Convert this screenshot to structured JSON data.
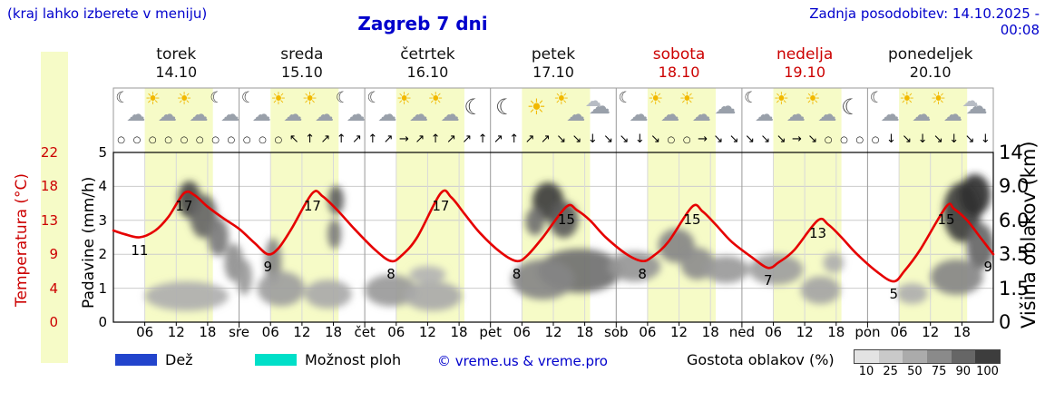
{
  "header": {
    "hint": "(kraj lahko izberete v meniju)",
    "title": "Zagreb 7 dni",
    "updated": "Zadnja posodobitev: 14.10.2025 - 00:08"
  },
  "axes": {
    "temp_label": "Temperatura (°C)",
    "temp_ticks": [
      "22",
      "18",
      "13",
      "9",
      "4",
      "0"
    ],
    "precip_label": "Padavine (mm/h)",
    "precip_ticks": [
      "5",
      "4",
      "3",
      "2",
      "1",
      "0"
    ],
    "cloud_label": "Višina oblakov (km)",
    "cloud_ticks": [
      "14",
      "9.0",
      "6.0",
      "3.5",
      "1.5",
      "0"
    ]
  },
  "days": [
    {
      "name": "torek",
      "date": "14.10",
      "weekend": false,
      "icons": [
        "moon-cloud",
        "sun-cloud",
        "sun-cloud",
        "moon-cloud"
      ]
    },
    {
      "name": "sreda",
      "date": "15.10",
      "weekend": false,
      "icons": [
        "moon-cloud",
        "sun-cloud",
        "sun-cloud",
        "moon-cloud"
      ]
    },
    {
      "name": "četrtek",
      "date": "16.10",
      "weekend": false,
      "icons": [
        "moon-cloud",
        "sun-cloud",
        "sun-cloud",
        "moon"
      ]
    },
    {
      "name": "petek",
      "date": "17.10",
      "weekend": false,
      "icons": [
        "moon",
        "sun",
        "sun-cloud",
        "clouds"
      ]
    },
    {
      "name": "sobota",
      "date": "18.10",
      "weekend": true,
      "icons": [
        "moon-cloud",
        "sun-cloud",
        "sun-cloud",
        "cloud"
      ]
    },
    {
      "name": "nedelja",
      "date": "19.10",
      "weekend": true,
      "icons": [
        "moon-cloud",
        "sun-cloud",
        "sun-cloud",
        "moon"
      ]
    },
    {
      "name": "ponedeljek",
      "date": "20.10",
      "weekend": false,
      "icons": [
        "moon-cloud",
        "sun-cloud",
        "sun-cloud",
        "clouds"
      ]
    }
  ],
  "x_ticks": [
    {
      "t": 6,
      "label": "06"
    },
    {
      "t": 12,
      "label": "12"
    },
    {
      "t": 18,
      "label": "18"
    },
    {
      "t": 24,
      "label": "sre"
    },
    {
      "t": 30,
      "label": "06"
    },
    {
      "t": 36,
      "label": "12"
    },
    {
      "t": 42,
      "label": "18"
    },
    {
      "t": 48,
      "label": "čet"
    },
    {
      "t": 54,
      "label": "06"
    },
    {
      "t": 60,
      "label": "12"
    },
    {
      "t": 66,
      "label": "18"
    },
    {
      "t": 72,
      "label": "pet"
    },
    {
      "t": 78,
      "label": "06"
    },
    {
      "t": 84,
      "label": "12"
    },
    {
      "t": 90,
      "label": "18"
    },
    {
      "t": 96,
      "label": "sob"
    },
    {
      "t": 102,
      "label": "06"
    },
    {
      "t": 108,
      "label": "12"
    },
    {
      "t": 114,
      "label": "18"
    },
    {
      "t": 120,
      "label": "ned"
    },
    {
      "t": 126,
      "label": "06"
    },
    {
      "t": 132,
      "label": "12"
    },
    {
      "t": 138,
      "label": "18"
    },
    {
      "t": 144,
      "label": "pon"
    },
    {
      "t": 150,
      "label": "06"
    },
    {
      "t": 156,
      "label": "12"
    },
    {
      "t": 162,
      "label": "18"
    }
  ],
  "wind_symbols": [
    "○",
    "○",
    "○",
    "○",
    "○",
    "○",
    "○",
    "○",
    "○",
    "○",
    "○",
    "↖",
    "↑",
    "↗",
    "↑",
    "↗",
    "↑",
    "↗",
    "→",
    "↗",
    "↑",
    "↗",
    "↗",
    "↑",
    "↗",
    "↑",
    "↗",
    "↗",
    "↘",
    "↘",
    "↓",
    "↘",
    "↘",
    "↓",
    "↘",
    "○",
    "○",
    "→",
    "↘",
    "↘",
    "↘",
    "↘",
    "↘",
    "→",
    "↘",
    "○",
    "○",
    "○",
    "○",
    "↓",
    "↘",
    "↓",
    "↘",
    "↓",
    "↘",
    "↓"
  ],
  "chart_data": {
    "type": "line",
    "title": "Zagreb 7 dni",
    "x_axis": {
      "unit": "hours",
      "range": [
        0,
        168
      ],
      "day_band_start": 6,
      "day_band_end": 19
    },
    "y_axes": {
      "temperature": {
        "label": "Temperatura (°C)",
        "tick_values": [
          0,
          4,
          9,
          13,
          18,
          22
        ]
      },
      "precipitation": {
        "label": "Padavine (mm/h)",
        "tick_values": [
          0,
          1,
          2,
          3,
          4,
          5
        ]
      },
      "cloud_height": {
        "label": "Višina oblakov (km)",
        "tick_values": [
          0,
          1.5,
          3.5,
          6.0,
          9.0,
          14
        ]
      }
    },
    "series": [
      {
        "name": "Temperatura",
        "color": "#e60000",
        "points": [
          [
            0,
            11.8
          ],
          [
            2,
            11.4
          ],
          [
            5,
            11
          ],
          [
            8,
            11.8
          ],
          [
            10.5,
            13.5
          ],
          [
            13.5,
            17
          ],
          [
            15.5,
            16.7
          ],
          [
            18,
            15
          ],
          [
            21,
            13.3
          ],
          [
            24,
            12
          ],
          [
            27,
            10.3
          ],
          [
            29.5,
            9
          ],
          [
            31.5,
            9.7
          ],
          [
            34,
            12
          ],
          [
            38,
            17
          ],
          [
            40,
            16.5
          ],
          [
            43,
            14.3
          ],
          [
            46,
            12
          ],
          [
            50,
            9.5
          ],
          [
            53,
            8
          ],
          [
            55,
            8.8
          ],
          [
            58,
            11
          ],
          [
            62.5,
            17
          ],
          [
            64.5,
            16.4
          ],
          [
            67,
            14
          ],
          [
            70,
            11.5
          ],
          [
            74,
            9.2
          ],
          [
            77,
            8
          ],
          [
            79,
            8.8
          ],
          [
            82,
            11
          ],
          [
            86.5,
            15
          ],
          [
            88.5,
            14.5
          ],
          [
            91,
            13
          ],
          [
            94,
            11
          ],
          [
            98,
            9
          ],
          [
            101,
            8
          ],
          [
            103,
            8.7
          ],
          [
            106,
            10.5
          ],
          [
            110.5,
            15
          ],
          [
            112.5,
            14.3
          ],
          [
            115,
            12.5
          ],
          [
            118,
            10.5
          ],
          [
            122,
            8.5
          ],
          [
            125,
            7
          ],
          [
            127,
            7.8
          ],
          [
            130,
            9.5
          ],
          [
            134.5,
            13
          ],
          [
            136.5,
            12.5
          ],
          [
            139,
            11
          ],
          [
            142,
            9
          ],
          [
            146,
            6.3
          ],
          [
            149,
            5
          ],
          [
            151,
            6.5
          ],
          [
            154,
            9.5
          ],
          [
            159,
            15
          ],
          [
            160.5,
            14.7
          ],
          [
            163,
            13
          ],
          [
            165.5,
            11
          ],
          [
            168,
            9
          ]
        ]
      }
    ],
    "point_labels": [
      {
        "t": 5,
        "v": 11,
        "text": "11"
      },
      {
        "t": 13.5,
        "v": 17,
        "text": "17"
      },
      {
        "t": 29.5,
        "v": 9,
        "text": "9"
      },
      {
        "t": 38,
        "v": 17,
        "text": "17"
      },
      {
        "t": 53,
        "v": 8,
        "text": "8"
      },
      {
        "t": 62.5,
        "v": 17,
        "text": "17"
      },
      {
        "t": 77,
        "v": 8,
        "text": "8"
      },
      {
        "t": 86.5,
        "v": 15,
        "text": "15"
      },
      {
        "t": 101,
        "v": 8,
        "text": "8"
      },
      {
        "t": 110.5,
        "v": 15,
        "text": "15"
      },
      {
        "t": 125,
        "v": 7,
        "text": "7"
      },
      {
        "t": 134.5,
        "v": 13,
        "text": "13"
      },
      {
        "t": 149,
        "v": 5,
        "text": "5"
      },
      {
        "t": 159,
        "v": 15,
        "text": "15"
      },
      {
        "t": 167,
        "v": 9,
        "text": "9"
      }
    ],
    "daily_summary": [
      {
        "day": "torek",
        "tmin": 11,
        "tmax": 17
      },
      {
        "day": "sreda",
        "tmin": 9,
        "tmax": 17
      },
      {
        "day": "četrtek",
        "tmin": 8,
        "tmax": 17
      },
      {
        "day": "petek",
        "tmin": 8,
        "tmax": 15
      },
      {
        "day": "sobota",
        "tmin": 8,
        "tmax": 15
      },
      {
        "day": "nedelja",
        "tmin": 7,
        "tmax": 13
      },
      {
        "day": "ponedeljek",
        "tmin": 5,
        "tmax": 15
      }
    ],
    "clouds": [
      {
        "t": 14.5,
        "km": 8.0,
        "rt": 2.2,
        "rkm": 1.8,
        "d": 80
      },
      {
        "t": 17.2,
        "km": 6.5,
        "rt": 2.6,
        "rkm": 1.8,
        "d": 65
      },
      {
        "t": 20,
        "km": 4.8,
        "rt": 2.0,
        "rkm": 1.4,
        "d": 55
      },
      {
        "t": 23,
        "km": 3.1,
        "rt": 1.8,
        "rkm": 1.2,
        "d": 45
      },
      {
        "t": 14,
        "km": 1.2,
        "rt": 8.0,
        "rkm": 0.7,
        "d": 30
      },
      {
        "t": 25,
        "km": 2.2,
        "rt": 1.5,
        "rkm": 1.0,
        "d": 40
      },
      {
        "t": 30.5,
        "km": 3.2,
        "rt": 1.6,
        "rkm": 1.5,
        "d": 50
      },
      {
        "t": 32,
        "km": 1.6,
        "rt": 4.5,
        "rkm": 0.9,
        "d": 38
      },
      {
        "t": 41,
        "km": 1.3,
        "rt": 4.5,
        "rkm": 0.7,
        "d": 33
      },
      {
        "t": 42.5,
        "km": 7.8,
        "rt": 1.5,
        "rkm": 1.3,
        "d": 68
      },
      {
        "t": 42.2,
        "km": 5.0,
        "rt": 1.3,
        "rkm": 1.1,
        "d": 55
      },
      {
        "t": 53,
        "km": 1.5,
        "rt": 5.0,
        "rkm": 0.8,
        "d": 40
      },
      {
        "t": 61,
        "km": 1.2,
        "rt": 5.5,
        "rkm": 0.7,
        "d": 33
      },
      {
        "t": 60,
        "km": 2.3,
        "rt": 3.5,
        "rkm": 0.5,
        "d": 28
      },
      {
        "t": 83,
        "km": 7.8,
        "rt": 3.0,
        "rkm": 1.8,
        "d": 85
      },
      {
        "t": 86,
        "km": 6.2,
        "rt": 2.8,
        "rkm": 1.5,
        "d": 70
      },
      {
        "t": 80.5,
        "km": 6.0,
        "rt": 1.8,
        "rkm": 1.1,
        "d": 60
      },
      {
        "t": 89,
        "km": 2.6,
        "rt": 8.0,
        "rkm": 1.3,
        "d": 60
      },
      {
        "t": 82,
        "km": 2.1,
        "rt": 6.0,
        "rkm": 1.1,
        "d": 50
      },
      {
        "t": 99.5,
        "km": 2.8,
        "rt": 5.0,
        "rkm": 0.9,
        "d": 42
      },
      {
        "t": 107.5,
        "km": 4.2,
        "rt": 3.5,
        "rkm": 1.2,
        "d": 50
      },
      {
        "t": 111.5,
        "km": 3.0,
        "rt": 3.2,
        "rkm": 1.0,
        "d": 46
      },
      {
        "t": 117,
        "km": 2.6,
        "rt": 4.3,
        "rkm": 0.8,
        "d": 40
      },
      {
        "t": 126.5,
        "km": 2.6,
        "rt": 5.2,
        "rkm": 0.9,
        "d": 38
      },
      {
        "t": 135,
        "km": 1.5,
        "rt": 3.8,
        "rkm": 0.7,
        "d": 35
      },
      {
        "t": 137.5,
        "km": 3.0,
        "rt": 2.0,
        "rkm": 0.6,
        "d": 30
      },
      {
        "t": 152.5,
        "km": 1.3,
        "rt": 3.0,
        "rkm": 0.5,
        "d": 30
      },
      {
        "t": 162,
        "km": 7.0,
        "rt": 3.6,
        "rkm": 2.6,
        "d": 85
      },
      {
        "t": 164.5,
        "km": 8.6,
        "rt": 3.0,
        "rkm": 2.2,
        "d": 90
      },
      {
        "t": 165.5,
        "km": 4.2,
        "rt": 2.6,
        "rkm": 1.6,
        "d": 65
      },
      {
        "t": 161,
        "km": 2.2,
        "rt": 5.0,
        "rkm": 1.0,
        "d": 50
      }
    ]
  },
  "legend": {
    "rain_label": "Dež",
    "rain_color": "#2244cc",
    "shower_label": "Možnost ploh",
    "shower_color": "#00dfc8",
    "copyright": "© vreme.us & vreme.pro",
    "cloud_density_label": "Gostota oblakov (%)",
    "density_ticks": [
      "10",
      "25",
      "50",
      "75",
      "90",
      "100"
    ],
    "density_colors": [
      "#e3e3e3",
      "#c9c9c9",
      "#ababab",
      "#8a8a8a",
      "#666666",
      "#3d3d3d"
    ]
  },
  "colors": {
    "day_band": "#f6fbc7",
    "curve": "#e60000",
    "blue_text": "#0000cc",
    "red_text": "#cc0000"
  }
}
